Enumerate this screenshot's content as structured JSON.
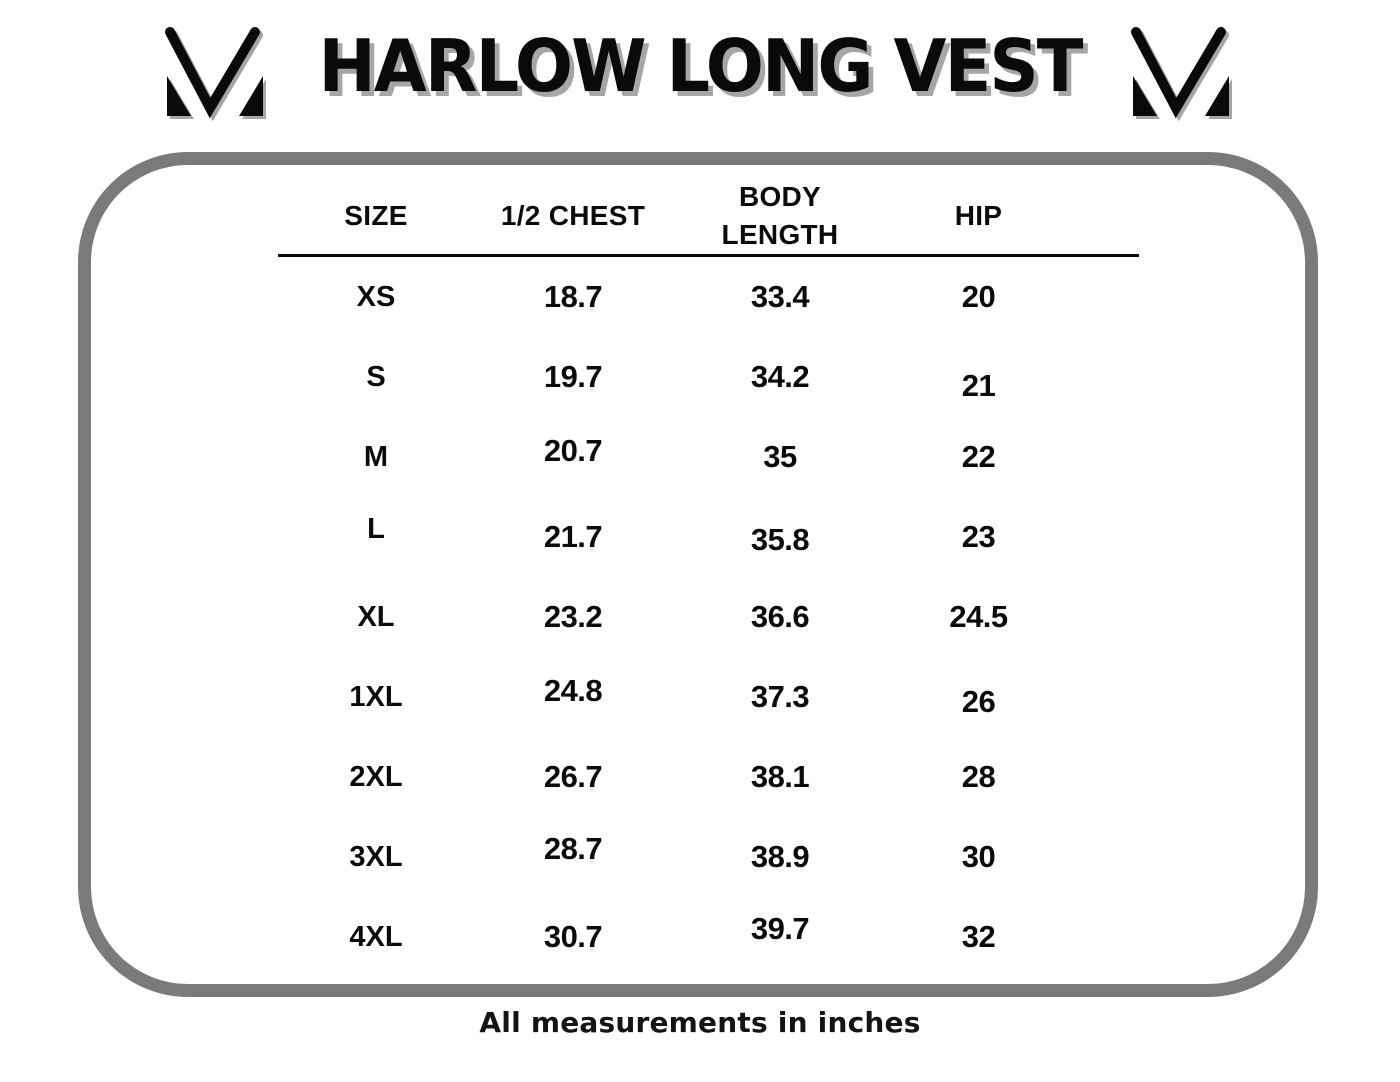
{
  "header": {
    "title": "HARLOW LONG VEST"
  },
  "chart_data": {
    "type": "table",
    "title": "HARLOW LONG VEST",
    "columns": [
      "SIZE",
      "1/2 CHEST",
      "BODY LENGTH",
      "HIP"
    ],
    "rows": [
      [
        "XS",
        "18.7",
        "33.4",
        "20"
      ],
      [
        "S",
        "19.7",
        "34.2",
        "21"
      ],
      [
        "M",
        "20.7",
        "35",
        "22"
      ],
      [
        "L",
        "21.7",
        "35.8",
        "23"
      ],
      [
        "XL",
        "23.2",
        "36.6",
        "24.5"
      ],
      [
        "1XL",
        "24.8",
        "37.3",
        "26"
      ],
      [
        "2XL",
        "26.7",
        "38.1",
        "28"
      ],
      [
        "3XL",
        "28.7",
        "38.9",
        "30"
      ],
      [
        "4XL",
        "30.7",
        "39.7",
        "32"
      ]
    ],
    "units": "inches",
    "footnote": "All measurements in inches"
  },
  "icons": {
    "brand_logo": "m-checkmark-logo"
  },
  "colors": {
    "text": "#0b0b0b",
    "border_gray": "#7a7a7a",
    "shadow_gray": "#a6a6a6"
  }
}
